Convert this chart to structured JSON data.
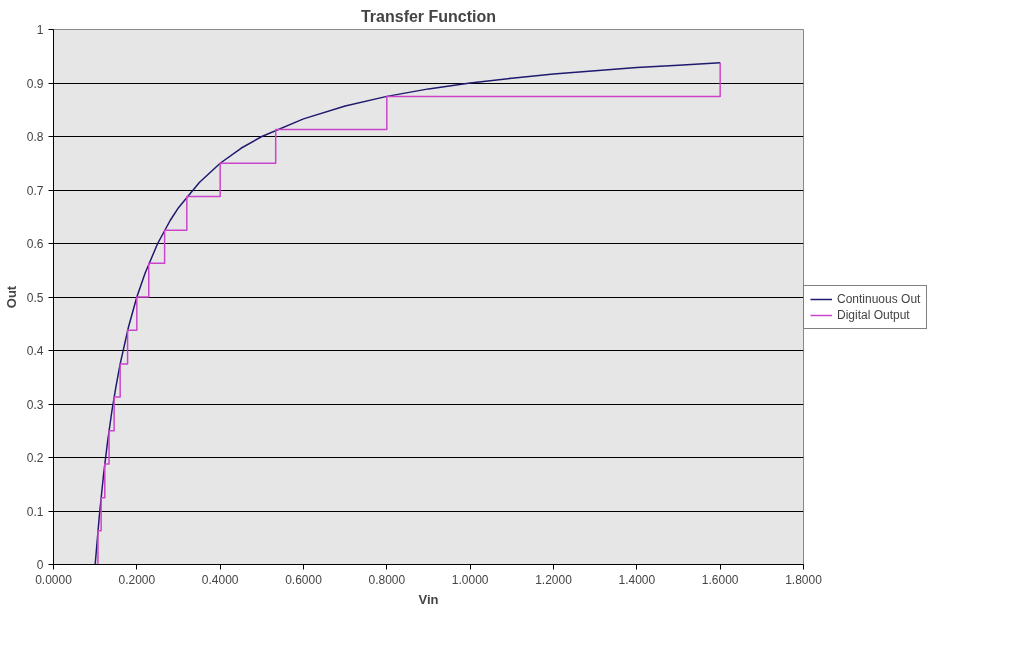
{
  "chart_data": {
    "type": "line",
    "title": "Transfer Function",
    "xlabel": "Vin",
    "ylabel": "Out",
    "xlim": [
      0,
      1.8
    ],
    "ylim": [
      0,
      1
    ],
    "xticks": [
      {
        "value": 0,
        "label": "0.0000"
      },
      {
        "value": 0.2,
        "label": "0.2000"
      },
      {
        "value": 0.4,
        "label": "0.4000"
      },
      {
        "value": 0.6,
        "label": "0.6000"
      },
      {
        "value": 0.8,
        "label": "0.8000"
      },
      {
        "value": 1.0,
        "label": "1.0000"
      },
      {
        "value": 1.2,
        "label": "1.2000"
      },
      {
        "value": 1.4,
        "label": "1.4000"
      },
      {
        "value": 1.6,
        "label": "1.6000"
      },
      {
        "value": 1.8,
        "label": "1.8000"
      }
    ],
    "yticks": [
      0,
      0.1,
      0.2,
      0.3,
      0.4,
      0.5,
      0.6,
      0.7,
      0.8,
      0.9,
      1
    ],
    "grid": "y",
    "legend": "right",
    "marker": "none",
    "line_style": "solid",
    "series": [
      {
        "name": "Continuous Out",
        "color": "#1f1a6e",
        "x": [
          0.1,
          0.11,
          0.12,
          0.13,
          0.14,
          0.15,
          0.16,
          0.18,
          0.2,
          0.22,
          0.25,
          0.28,
          0.3,
          0.35,
          0.4,
          0.45,
          0.5,
          0.6,
          0.7,
          0.8,
          0.9,
          1.0,
          1.1,
          1.2,
          1.3,
          1.4,
          1.5,
          1.6
        ],
        "values": [
          0,
          0.091,
          0.167,
          0.231,
          0.286,
          0.333,
          0.375,
          0.444,
          0.5,
          0.545,
          0.6,
          0.643,
          0.667,
          0.714,
          0.75,
          0.778,
          0.8,
          0.833,
          0.857,
          0.875,
          0.889,
          0.9,
          0.909,
          0.917,
          0.923,
          0.929,
          0.933,
          0.938
        ]
      },
      {
        "name": "Digital Output",
        "type": "step",
        "color": "#cc44cc",
        "x": [
          0.1,
          0.1067,
          0.1143,
          0.1231,
          0.1333,
          0.1455,
          0.16,
          0.1778,
          0.2,
          0.2286,
          0.2667,
          0.32,
          0.4,
          0.5333,
          0.8,
          1.6
        ],
        "values": [
          0,
          0.063,
          0.125,
          0.188,
          0.25,
          0.313,
          0.375,
          0.438,
          0.5,
          0.563,
          0.625,
          0.688,
          0.75,
          0.813,
          0.875,
          0.938
        ]
      }
    ]
  }
}
